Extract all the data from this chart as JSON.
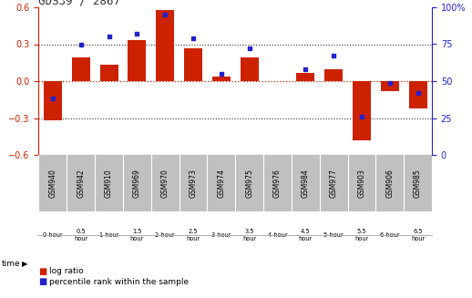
{
  "title": "GDS39 / 2867",
  "samples": [
    "GSM940",
    "GSM942",
    "GSM910",
    "GSM969",
    "GSM970",
    "GSM973",
    "GSM974",
    "GSM975",
    "GSM976",
    "GSM984",
    "GSM977",
    "GSM903",
    "GSM906",
    "GSM985"
  ],
  "time_labels": [
    "0 hour",
    "0.5\nhour",
    "1 hour",
    "1.5\nhour",
    "2 hour",
    "2.5\nhour",
    "3 hour",
    "3.5\nhour",
    "4 hour",
    "4.5\nhour",
    "5 hour",
    "5.5\nhour",
    "6 hour",
    "6.5\nhour"
  ],
  "time_bg": [
    "#ffffff",
    "#ffffff",
    "#ffffff",
    "#ffffff",
    "#ffffff",
    "#ffffff",
    "#ffffff",
    "#ffffff",
    "#ffffff",
    "#ffffff",
    "#90ee90",
    "#90ee90",
    "#90ee90",
    "#90ee90"
  ],
  "log_ratio": [
    -0.32,
    0.19,
    0.13,
    0.33,
    0.58,
    0.27,
    0.04,
    0.19,
    0.0,
    0.07,
    0.1,
    -0.48,
    -0.08,
    -0.22
  ],
  "percentile": [
    38,
    75,
    80,
    82,
    95,
    79,
    55,
    72,
    null,
    58,
    67,
    26,
    49,
    42
  ],
  "ylim_left": [
    -0.6,
    0.6
  ],
  "ylim_right": [
    0,
    100
  ],
  "yticks_left": [
    -0.6,
    -0.3,
    0.0,
    0.3,
    0.6
  ],
  "yticks_right": [
    0,
    25,
    50,
    75,
    100
  ],
  "bar_color": "#cc2200",
  "dot_color": "#2222cc",
  "zero_line_color": "#cc2200",
  "grid_line_color": "#333333",
  "bg_chart": "#ffffff",
  "bg_sample_row": "#c0c0c0",
  "title_color": "#333333",
  "left_axis_color": "#cc2200",
  "right_axis_color": "#2222cc",
  "legend_log": "log ratio",
  "legend_pct": "percentile rank within the sample"
}
